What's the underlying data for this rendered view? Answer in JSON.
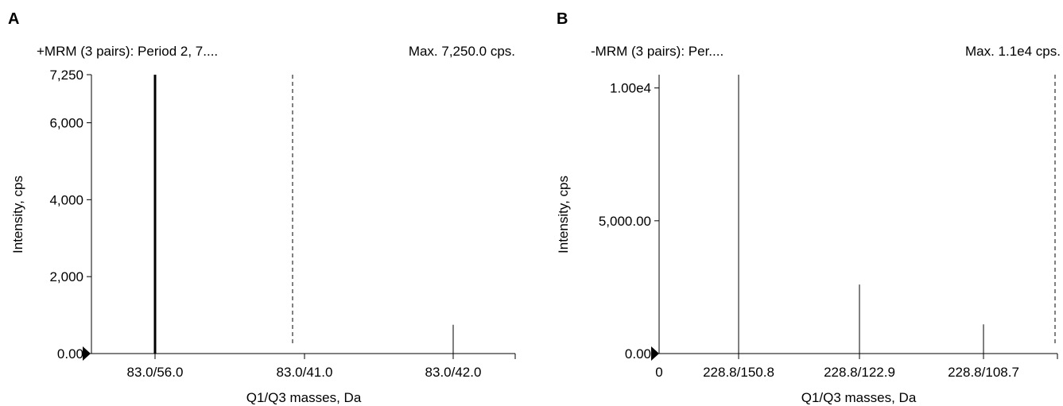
{
  "chart_data": [
    {
      "panel": "A",
      "type": "bar",
      "header_left": "+MRM (3 pairs): Period 2, 7....",
      "header_right": "Max. 7,250.0 cps.",
      "xlabel": "Q1/Q3 masses, Da",
      "ylabel": "Intensity, cps",
      "ylim": [
        0,
        7250
      ],
      "yticks": [
        {
          "value": 0,
          "label": "0.00"
        },
        {
          "value": 2000,
          "label": "2,000"
        },
        {
          "value": 4000,
          "label": "4,000"
        },
        {
          "value": 6000,
          "label": "6,000"
        },
        {
          "value": 7250,
          "label": "7,250"
        }
      ],
      "x_origin_label": "",
      "categories": [
        "83.0/56.0",
        "83.0/41.0",
        "83.0/42.0"
      ],
      "values": [
        7250,
        0,
        750
      ],
      "marker_position": 1.93
    },
    {
      "panel": "B",
      "type": "bar",
      "header_left": "-MRM (3 pairs): Per....",
      "header_right": "Max. 1.1e4 cps.",
      "xlabel": "Q1/Q3 masses, Da",
      "ylabel": "Intensity, cps",
      "ylim": [
        0,
        10500
      ],
      "yticks": [
        {
          "value": 0,
          "label": "0.00"
        },
        {
          "value": 5000,
          "label": "5,000.00"
        },
        {
          "value": 10000,
          "label": "1.00e4"
        }
      ],
      "x_origin_label": "0",
      "categories": [
        "228.8/150.8",
        "228.8/122.9",
        "228.8/108.7"
      ],
      "values": [
        10500,
        2600,
        1100
      ],
      "marker_position": 3.6
    }
  ]
}
